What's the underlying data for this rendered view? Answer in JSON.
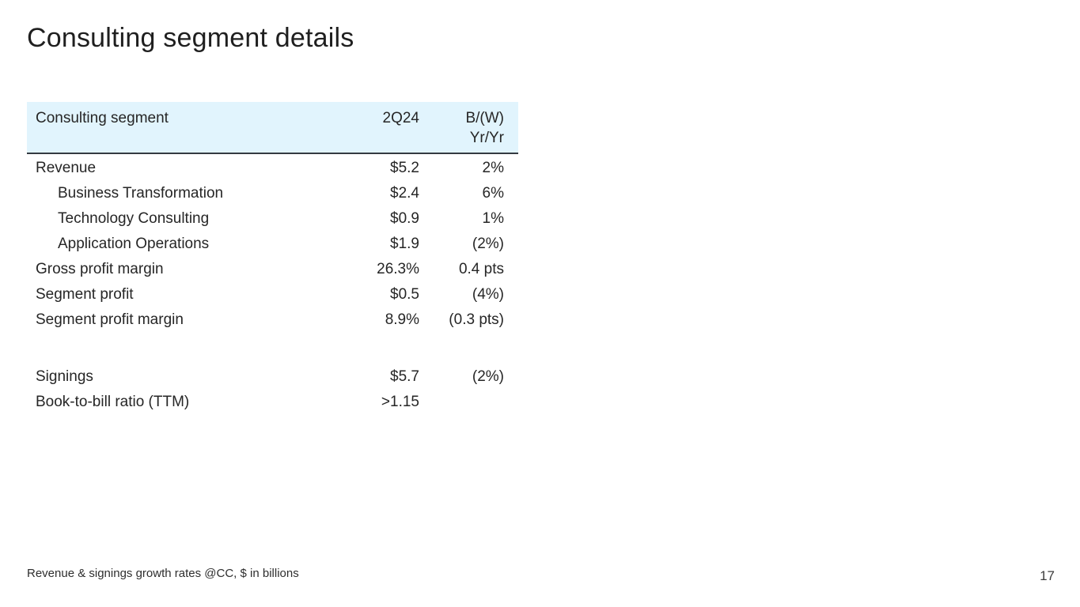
{
  "slide": {
    "title": "Consulting segment details",
    "footnote": "Revenue & signings growth rates @CC, $ in billions",
    "page_number": "17"
  },
  "table": {
    "header": {
      "label": "Consulting segment",
      "period": "2Q24",
      "yoy_line1": "B/(W)",
      "yoy_line2": "Yr/Yr"
    },
    "rows": [
      {
        "label": "Revenue",
        "value": "$5.2",
        "yoy": "2%",
        "indent": false
      },
      {
        "label": "Business Transformation",
        "value": "$2.4",
        "yoy": "6%",
        "indent": true
      },
      {
        "label": "Technology Consulting",
        "value": "$0.9",
        "yoy": "1%",
        "indent": true
      },
      {
        "label": "Application Operations",
        "value": "$1.9",
        "yoy": "(2%)",
        "indent": true
      },
      {
        "label": "Gross profit margin",
        "value": "26.3%",
        "yoy": "0.4 pts",
        "indent": false
      },
      {
        "label": "Segment profit",
        "value": "$0.5",
        "yoy": "(4%)",
        "indent": false
      },
      {
        "label": "Segment profit margin",
        "value": "8.9%",
        "yoy": "(0.3 pts)",
        "indent": false
      },
      {
        "spacer": true
      },
      {
        "label": "Signings",
        "value": "$5.7",
        "yoy": "(2%)",
        "indent": false
      },
      {
        "label": "Book-to-bill ratio (TTM)",
        "value": ">1.15",
        "yoy": "",
        "indent": false
      }
    ],
    "colors": {
      "header_bg": "#e1f4fd",
      "header_border": "#343a40",
      "text": "#262626"
    }
  }
}
